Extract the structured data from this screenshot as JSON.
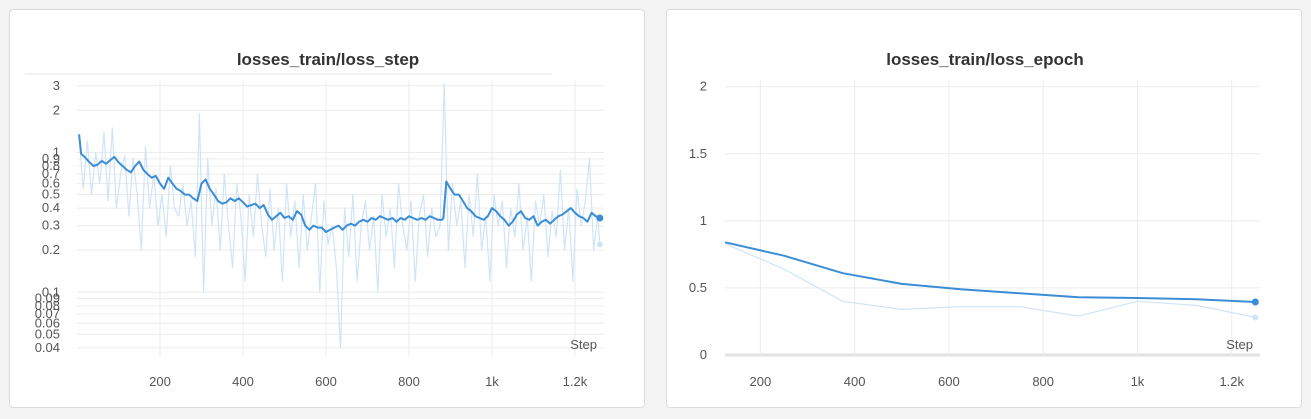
{
  "colors": {
    "line": "#3b8dd6",
    "raw": "#cfe4f7",
    "grid": "#ececec"
  },
  "charts": [
    {
      "type": "line",
      "title": "losses_train/loss_step",
      "xlabel": "Step",
      "yscale": "log",
      "xlim": [
        0,
        1270
      ],
      "ylim": [
        0.035,
        3.3
      ],
      "xticks": [
        200,
        400,
        600,
        800,
        1000,
        1200
      ],
      "xtick_labels": [
        "200",
        "400",
        "600",
        "800",
        "1k",
        "1.2k"
      ],
      "yticks": [
        3,
        2,
        1,
        0.9,
        0.8,
        0.7,
        0.6,
        0.5,
        0.4,
        0.3,
        0.2,
        0.1,
        0.09,
        0.08,
        0.07,
        0.06,
        0.05,
        0.04
      ],
      "ytick_labels": [
        "3",
        "2",
        "1",
        "0.9",
        "0.8",
        "0.7",
        "0.6",
        "0.5",
        "0.4",
        "0.3",
        "0.2",
        "0.1",
        "0.09",
        "0.08",
        "0.07",
        "0.06",
        "0.05",
        "0.04"
      ],
      "series": [
        {
          "style": "smoothed",
          "x": [
            5,
            10,
            20,
            30,
            40,
            50,
            60,
            70,
            80,
            90,
            100,
            110,
            120,
            130,
            140,
            150,
            160,
            170,
            180,
            190,
            200,
            210,
            220,
            230,
            240,
            250,
            260,
            270,
            280,
            290,
            300,
            310,
            320,
            330,
            340,
            350,
            360,
            370,
            380,
            390,
            400,
            410,
            420,
            430,
            440,
            450,
            460,
            470,
            480,
            490,
            500,
            510,
            520,
            530,
            540,
            550,
            560,
            570,
            580,
            590,
            600,
            610,
            620,
            630,
            640,
            650,
            660,
            670,
            680,
            690,
            700,
            710,
            720,
            730,
            740,
            750,
            760,
            770,
            780,
            790,
            800,
            810,
            820,
            830,
            840,
            850,
            860,
            870,
            880,
            883,
            890,
            900,
            910,
            920,
            930,
            940,
            950,
            960,
            970,
            980,
            990,
            1000,
            1010,
            1020,
            1030,
            1040,
            1050,
            1060,
            1070,
            1080,
            1090,
            1100,
            1110,
            1120,
            1130,
            1140,
            1150,
            1160,
            1170,
            1180,
            1190,
            1200,
            1210,
            1220,
            1230,
            1240,
            1250,
            1260
          ],
          "y": [
            1.35,
            0.98,
            0.92,
            0.85,
            0.8,
            0.82,
            0.87,
            0.83,
            0.88,
            0.93,
            0.85,
            0.8,
            0.75,
            0.72,
            0.8,
            0.86,
            0.75,
            0.7,
            0.66,
            0.68,
            0.6,
            0.55,
            0.66,
            0.6,
            0.55,
            0.53,
            0.5,
            0.5,
            0.47,
            0.45,
            0.6,
            0.64,
            0.55,
            0.5,
            0.45,
            0.43,
            0.44,
            0.47,
            0.45,
            0.47,
            0.44,
            0.41,
            0.42,
            0.43,
            0.4,
            0.42,
            0.36,
            0.33,
            0.35,
            0.37,
            0.34,
            0.35,
            0.33,
            0.38,
            0.36,
            0.3,
            0.28,
            0.3,
            0.29,
            0.29,
            0.27,
            0.28,
            0.29,
            0.3,
            0.28,
            0.3,
            0.31,
            0.3,
            0.32,
            0.33,
            0.32,
            0.34,
            0.33,
            0.35,
            0.34,
            0.33,
            0.34,
            0.32,
            0.34,
            0.33,
            0.35,
            0.34,
            0.33,
            0.34,
            0.33,
            0.35,
            0.34,
            0.33,
            0.33,
            0.34,
            0.62,
            0.55,
            0.5,
            0.5,
            0.45,
            0.4,
            0.38,
            0.35,
            0.34,
            0.33,
            0.35,
            0.4,
            0.38,
            0.35,
            0.33,
            0.3,
            0.32,
            0.36,
            0.38,
            0.34,
            0.33,
            0.35,
            0.3,
            0.32,
            0.33,
            0.31,
            0.33,
            0.35,
            0.36,
            0.38,
            0.4,
            0.37,
            0.35,
            0.34,
            0.32,
            0.37,
            0.35,
            0.34
          ]
        },
        {
          "style": "raw",
          "x": [
            5,
            15,
            25,
            35,
            45,
            55,
            65,
            75,
            85,
            95,
            105,
            115,
            125,
            135,
            145,
            155,
            165,
            175,
            185,
            195,
            205,
            215,
            225,
            235,
            245,
            255,
            265,
            275,
            285,
            295,
            305,
            315,
            325,
            335,
            345,
            355,
            365,
            375,
            385,
            395,
            405,
            415,
            425,
            435,
            445,
            455,
            465,
            475,
            485,
            495,
            505,
            515,
            525,
            535,
            545,
            555,
            565,
            575,
            585,
            595,
            605,
            615,
            625,
            635,
            645,
            655,
            665,
            675,
            685,
            695,
            705,
            715,
            725,
            735,
            745,
            755,
            765,
            775,
            785,
            795,
            805,
            815,
            825,
            835,
            845,
            855,
            865,
            875,
            885,
            895,
            905,
            915,
            925,
            935,
            945,
            955,
            965,
            975,
            985,
            995,
            1005,
            1015,
            1025,
            1035,
            1045,
            1055,
            1065,
            1075,
            1085,
            1095,
            1105,
            1115,
            1125,
            1135,
            1145,
            1155,
            1165,
            1175,
            1185,
            1195,
            1205,
            1215,
            1225,
            1235,
            1245,
            1255,
            1260
          ],
          "y": [
            1.3,
            0.55,
            1.2,
            0.5,
            1.0,
            0.6,
            1.4,
            0.45,
            1.5,
            0.4,
            0.7,
            0.95,
            0.35,
            0.9,
            0.5,
            0.2,
            1.1,
            0.4,
            0.7,
            0.3,
            0.5,
            0.25,
            0.8,
            0.4,
            0.35,
            0.6,
            0.3,
            0.45,
            0.18,
            1.9,
            0.1,
            0.9,
            0.3,
            0.55,
            0.2,
            0.7,
            0.3,
            0.15,
            0.6,
            0.35,
            0.12,
            0.5,
            0.25,
            0.7,
            0.3,
            0.18,
            0.55,
            0.2,
            0.4,
            0.12,
            0.6,
            0.25,
            0.45,
            0.15,
            0.5,
            0.2,
            0.35,
            0.6,
            0.1,
            0.45,
            0.22,
            0.3,
            0.15,
            0.04,
            0.4,
            0.18,
            0.5,
            0.12,
            0.3,
            0.45,
            0.2,
            0.35,
            0.1,
            0.5,
            0.25,
            0.4,
            0.15,
            0.6,
            0.3,
            0.2,
            0.45,
            0.12,
            0.35,
            0.5,
            0.18,
            0.4,
            0.25,
            0.3,
            3.1,
            0.2,
            0.6,
            0.3,
            0.45,
            0.15,
            0.5,
            0.25,
            0.7,
            0.2,
            0.35,
            0.12,
            0.5,
            0.3,
            0.45,
            0.15,
            0.4,
            0.25,
            0.6,
            0.2,
            0.35,
            0.12,
            0.45,
            0.3,
            0.5,
            0.18,
            0.38,
            0.25,
            0.75,
            0.2,
            0.4,
            0.12,
            0.55,
            0.3,
            0.45,
            0.9,
            0.2,
            0.35,
            0.22
          ]
        }
      ]
    },
    {
      "type": "line",
      "title": "losses_train/loss_epoch",
      "xlabel": "Step",
      "yscale": "linear",
      "xlim": [
        125,
        1260
      ],
      "ylim": [
        0,
        2.05
      ],
      "xticks": [
        200,
        400,
        600,
        800,
        1000,
        1200
      ],
      "xtick_labels": [
        "200",
        "400",
        "600",
        "800",
        "1k",
        "1.2k"
      ],
      "yticks": [
        0,
        0.5,
        1,
        1.5,
        2
      ],
      "ytick_labels": [
        "0",
        "0.5",
        "1",
        "1.5",
        "2"
      ],
      "series": [
        {
          "style": "smoothed",
          "x": [
            125,
            250,
            375,
            500,
            625,
            750,
            875,
            1000,
            1125,
            1250
          ],
          "y": [
            0.84,
            0.74,
            0.61,
            0.53,
            0.49,
            0.46,
            0.43,
            0.425,
            0.415,
            0.395
          ]
        },
        {
          "style": "raw",
          "x": [
            125,
            250,
            375,
            500,
            625,
            750,
            875,
            1000,
            1125,
            1250
          ],
          "y": [
            0.83,
            0.64,
            0.4,
            0.34,
            0.36,
            0.36,
            0.29,
            0.4,
            0.37,
            0.28
          ]
        }
      ]
    }
  ]
}
